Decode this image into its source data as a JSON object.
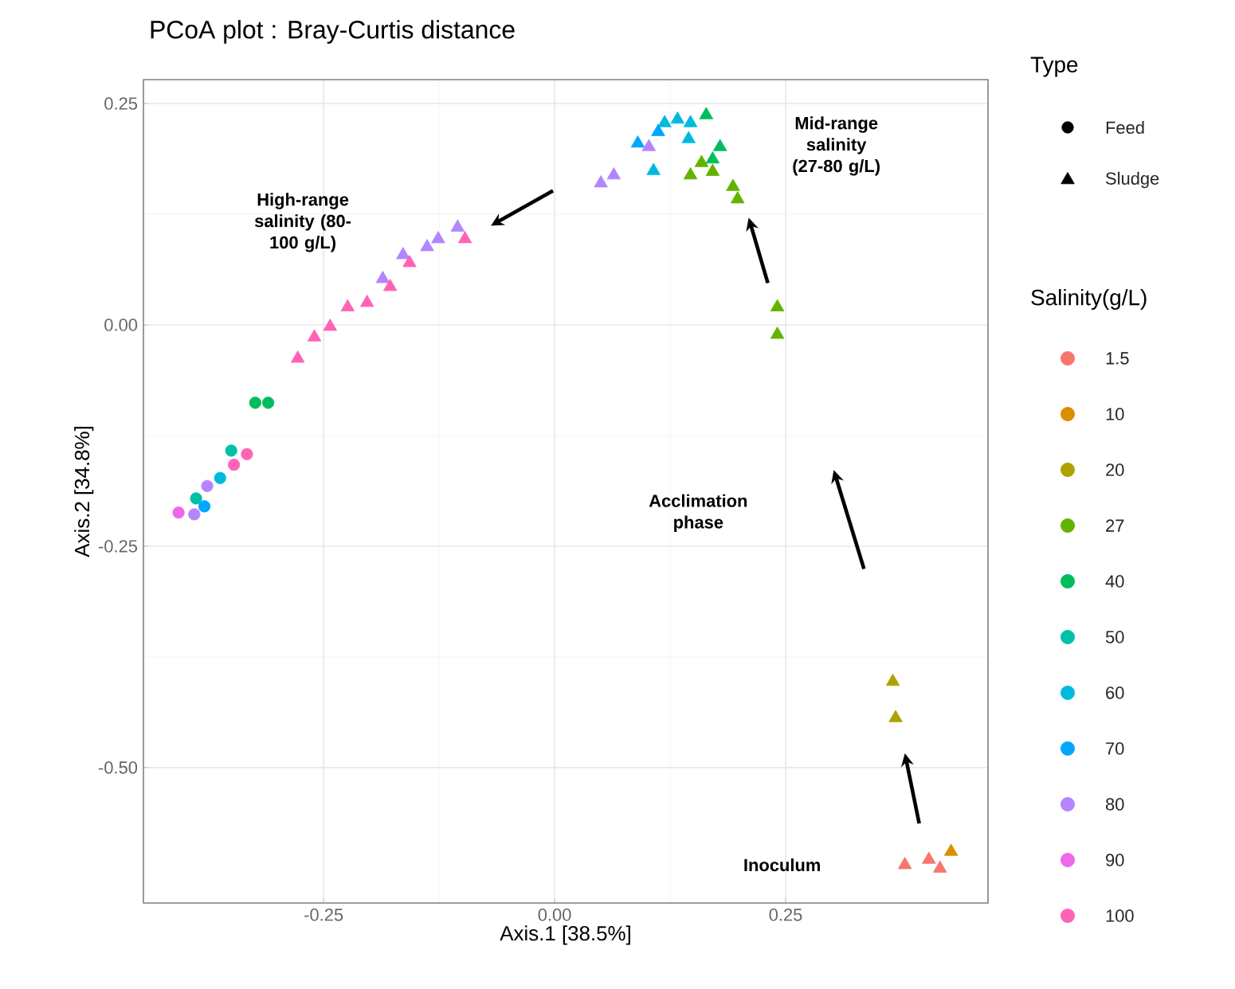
{
  "chart_data": {
    "type": "scatter",
    "title": "PCoA plot : Bray-Curtis distance",
    "xlabel": "Axis.1   [38.5%]",
    "ylabel": "Axis.2   [34.8%]",
    "legend_title": "Salinity(g/L)",
    "xlim": [
      -0.445,
      0.469
    ],
    "ylim": [
      -0.653,
      0.277
    ],
    "xticks": [
      {
        "value": -0.25,
        "label": "-0.25"
      },
      {
        "value": 0,
        "label": "0.00"
      },
      {
        "value": 0.25,
        "label": "0.25"
      }
    ],
    "yticks": [
      {
        "value": -0.5,
        "label": "-0.50"
      },
      {
        "value": -0.25,
        "label": "-0.25"
      },
      {
        "value": 0,
        "label": "0.00"
      },
      {
        "value": 0.25,
        "label": "0.25"
      }
    ],
    "grid": true,
    "legend": "right",
    "annotations": [
      "Type",
      "High-range salinity (80-100 g/L)",
      "Mid-range salinity (27-80 g/L)",
      "Acclimation phase",
      "Inoculum"
    ],
    "series": [
      {
        "name": "Feed",
        "color": "#000000",
        "marker": "circle"
      },
      {
        "name": "Sludge",
        "color": "#000000",
        "marker": "triangle"
      },
      {
        "name": "1.5",
        "color": "#f8766d",
        "marker": "triangle",
        "x": [
          0.379,
          0.405,
          0.417
        ],
        "values": [
          -0.61,
          -0.604,
          -0.614
        ]
      },
      {
        "name": "10",
        "color": "#db8e00",
        "marker": "triangle",
        "x": [
          0.429
        ],
        "values": [
          -0.595
        ]
      },
      {
        "name": "20",
        "color": "#aea200",
        "marker": "triangle",
        "x": [
          0.366,
          0.369
        ],
        "values": [
          -0.403,
          -0.444
        ]
      },
      {
        "name": "27",
        "color": "#64b200",
        "marker": "triangle",
        "x": [
          0.241,
          0.241,
          0.193,
          0.198,
          0.159,
          0.171,
          0.147
        ],
        "values": [
          0.02,
          -0.011,
          0.156,
          0.142,
          0.183,
          0.173,
          0.169
        ]
      },
      {
        "name": "40",
        "color": "#00bd5c",
        "marker": "triangle",
        "x": [
          0.164,
          0.179,
          0.171
        ],
        "values": [
          0.237,
          0.201,
          0.187
        ]
      },
      {
        "color": "#00bd5c",
        "marker": "circle",
        "x": [
          -0.324,
          -0.31
        ],
        "values": [
          -0.088,
          -0.088
        ]
      },
      {
        "name": "50",
        "color": "#00c1a7",
        "marker": "circle",
        "x": [
          -0.35,
          -0.388
        ],
        "values": [
          -0.142,
          -0.196
        ]
      },
      {
        "name": "60",
        "color": "#00bade",
        "marker": "triangle",
        "x": [
          0.107,
          0.119,
          0.133,
          0.145,
          0.147
        ],
        "values": [
          0.174,
          0.228,
          0.232,
          0.21,
          0.228
        ]
      },
      {
        "color": "#00bade",
        "marker": "circle",
        "x": [
          -0.362
        ],
        "values": [
          -0.173
        ]
      },
      {
        "name": "70",
        "color": "#00a6ff",
        "marker": "triangle",
        "x": [
          0.09,
          0.112
        ],
        "values": [
          0.205,
          0.218
        ]
      },
      {
        "color": "#00a6ff",
        "marker": "circle",
        "x": [
          -0.379
        ],
        "values": [
          -0.205
        ]
      },
      {
        "name": "80",
        "color": "#b385ff",
        "marker": "triangle",
        "x": [
          0.102,
          0.05,
          0.064,
          -0.105,
          -0.126,
          -0.138,
          -0.164,
          -0.186
        ],
        "values": [
          0.201,
          0.16,
          0.169,
          0.11,
          0.097,
          0.088,
          0.079,
          0.052
        ]
      },
      {
        "color": "#b385ff",
        "marker": "circle",
        "x": [
          -0.376,
          -0.39
        ],
        "values": [
          -0.182,
          -0.214
        ]
      },
      {
        "name": "90",
        "color": "#ef67eb",
        "marker": "circle",
        "x": [
          -0.407
        ],
        "values": [
          -0.212
        ]
      },
      {
        "name": "100",
        "color": "#ff63b6",
        "marker": "triangle",
        "x": [
          -0.097,
          -0.157,
          -0.178,
          -0.203,
          -0.224,
          -0.243,
          -0.26,
          -0.278
        ],
        "values": [
          0.097,
          0.07,
          0.043,
          0.025,
          0.02,
          -0.002,
          -0.014,
          -0.038
        ]
      },
      {
        "color": "#ff63b6",
        "marker": "circle",
        "x": [
          -0.333,
          -0.347
        ],
        "values": [
          -0.146,
          -0.158
        ]
      }
    ]
  }
}
